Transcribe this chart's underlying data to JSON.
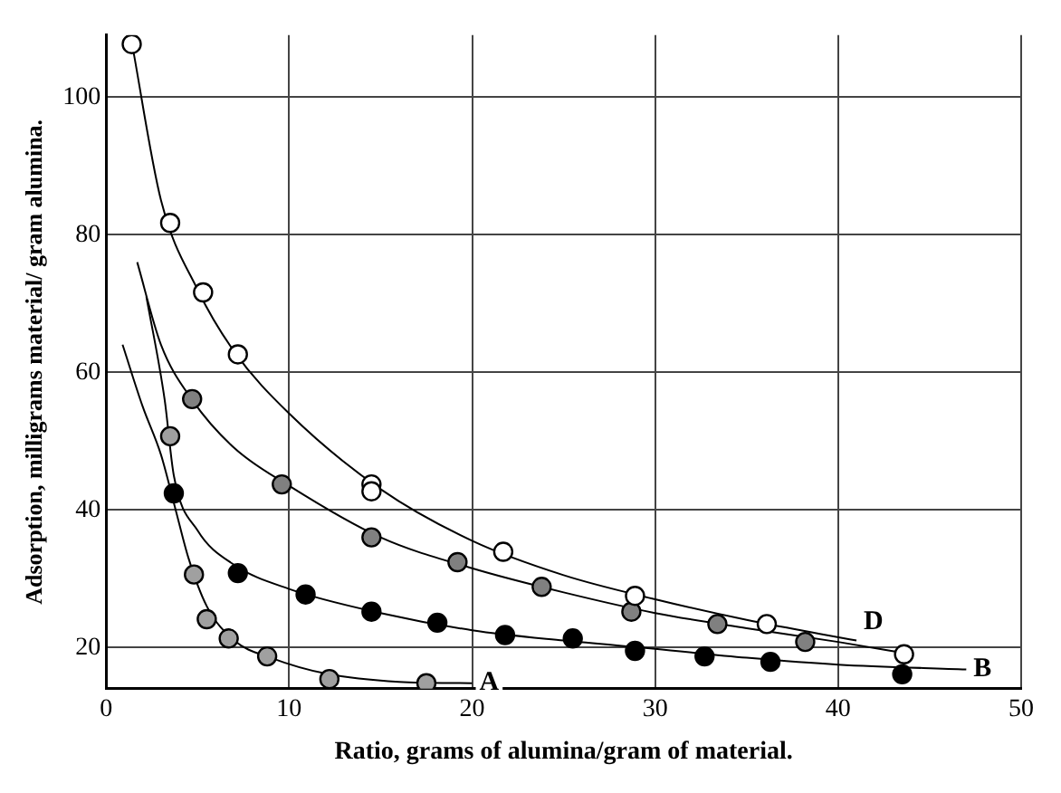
{
  "chart_data": {
    "type": "scatter",
    "xlabel": "Ratio, grams of alumina/gram of material.",
    "ylabel": "Adsorption, milligrams material/ gram alumina.",
    "xlim": [
      0,
      50
    ],
    "ylim": [
      14,
      109
    ],
    "xticks": [
      0,
      10,
      20,
      30,
      40,
      50
    ],
    "yticks": [
      20,
      40,
      60,
      80,
      100
    ],
    "grid": true,
    "legend": false,
    "marker": "circle",
    "series": [
      {
        "type": "scatter",
        "color": "#ffffff",
        "x": [
          1.4,
          3.5,
          5.3,
          7.2,
          14.5,
          14.5,
          21.7,
          28.9,
          36.1,
          43.6
        ],
        "values": [
          107.7,
          81.7,
          71.6,
          62.6,
          43.7,
          42.7,
          33.9,
          27.5,
          23.4,
          19.0
        ]
      },
      {
        "type": "scatter",
        "color": "#808080",
        "x": [
          4.7,
          9.6,
          14.5,
          19.2,
          23.8,
          28.7,
          33.4,
          38.2
        ],
        "values": [
          56.1,
          43.7,
          36.0,
          32.4,
          28.8,
          25.2,
          23.4,
          20.8
        ]
      },
      {
        "type": "scatter",
        "color": "#000000",
        "x": [
          3.7,
          7.2,
          10.9,
          14.5,
          18.1,
          21.8,
          25.5,
          28.9,
          32.7,
          36.3,
          43.5
        ],
        "values": [
          42.4,
          30.8,
          27.7,
          25.2,
          23.6,
          21.8,
          21.3,
          19.5,
          18.7,
          17.9,
          16.1
        ]
      },
      {
        "type": "scatter",
        "color": "#a0a0a0",
        "x": [
          3.5,
          4.8,
          5.5,
          6.7,
          8.8,
          12.2,
          17.5
        ],
        "values": [
          50.7,
          30.6,
          24.1,
          21.3,
          18.7,
          15.4,
          14.8
        ]
      },
      {
        "type": "line",
        "name": "D",
        "marker": "none",
        "color": "#000000",
        "x": [
          1.4,
          3,
          5,
          7,
          10,
          15,
          20,
          25,
          30,
          35,
          41
        ],
        "values": [
          108,
          85,
          72,
          63,
          54,
          43,
          35.5,
          30.5,
          27,
          24,
          21
        ]
      },
      {
        "type": "line",
        "marker": "none",
        "color": "#000000",
        "x": [
          1.7,
          3,
          4.7,
          7,
          10,
          15,
          20,
          25,
          30,
          35,
          40,
          44
        ],
        "values": [
          76,
          64,
          56,
          49,
          43.5,
          36,
          31.5,
          28,
          25,
          22.8,
          20.8,
          19
        ]
      },
      {
        "type": "line",
        "name": "B",
        "marker": "none",
        "color": "#000000",
        "x": [
          2.2,
          3.2,
          3.7,
          5,
          7,
          10,
          15,
          20,
          25,
          30,
          35,
          40,
          47
        ],
        "values": [
          71,
          56,
          45,
          37,
          32,
          28.5,
          25,
          22.5,
          21,
          19.8,
          18.5,
          17.5,
          16.8
        ]
      },
      {
        "type": "line",
        "name": "A",
        "marker": "none",
        "color": "#000000",
        "x": [
          0.9,
          2,
          3,
          3.8,
          4.5,
          5.5,
          7,
          9,
          12,
          16,
          20
        ],
        "values": [
          64,
          55,
          48,
          40,
          33,
          26,
          21,
          18.5,
          16.2,
          15,
          14.8
        ]
      }
    ]
  }
}
